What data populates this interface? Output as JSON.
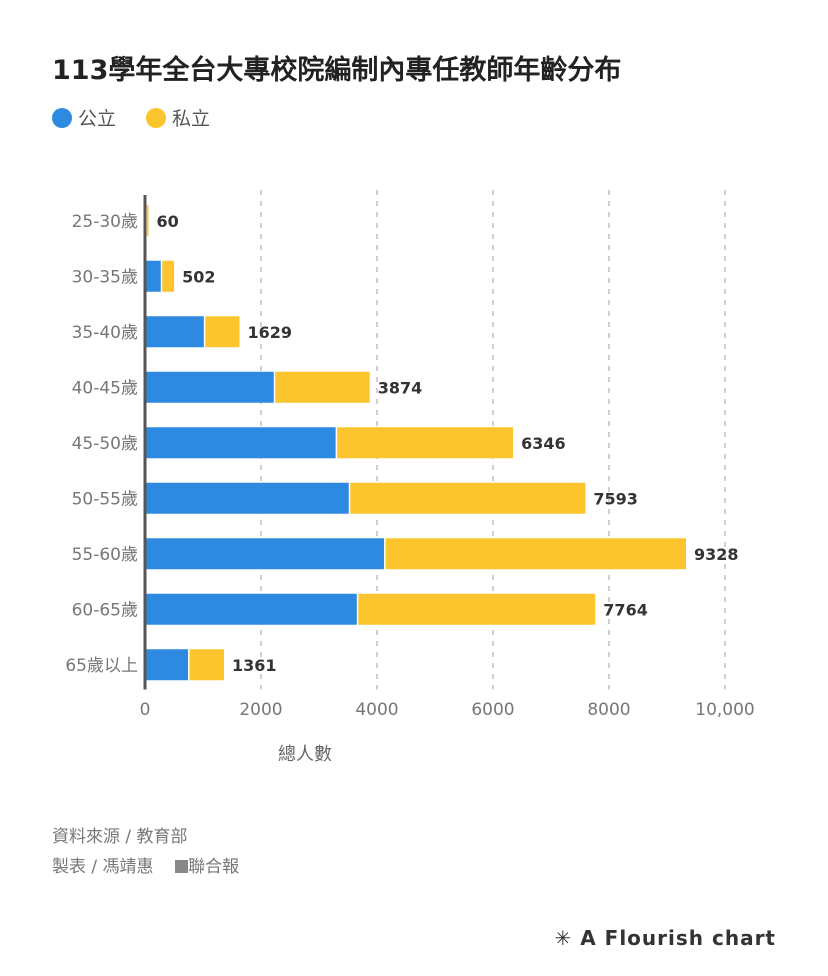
{
  "title": "113學年全台大專校院編制內專任教師年齡分布",
  "chart_data": {
    "type": "bar",
    "orientation": "horizontal",
    "stacked": true,
    "title": "113學年全台大專校院編制內專任教師年齡分布",
    "xlabel": "總人數",
    "ylabel": "",
    "xlim": [
      0,
      10000
    ],
    "xticks": [
      0,
      2000,
      4000,
      6000,
      8000,
      10000
    ],
    "xtick_labels": [
      "0",
      "2000",
      "4000",
      "6000",
      "8000",
      "10,000"
    ],
    "categories": [
      "25-30歲",
      "30-35歲",
      "35-40歲",
      "40-45歲",
      "45-50歲",
      "50-55歲",
      "55-60歲",
      "60-65歲",
      "65歲以上"
    ],
    "series": [
      {
        "name": "公立",
        "color": "#2e8ae0",
        "values": [
          5,
          272,
          1014,
          2220,
          3287,
          3513,
          4122,
          3652,
          742
        ]
      },
      {
        "name": "私立",
        "color": "#fcc52e",
        "values": [
          55,
          230,
          615,
          1654,
          3059,
          4080,
          5206,
          4112,
          619
        ]
      }
    ],
    "totals": [
      60,
      502,
      1629,
      3874,
      6346,
      7593,
      9328,
      7764,
      1361
    ],
    "grid": true,
    "legend_position": "top-left"
  },
  "footer": {
    "source": "資料來源 / 教育部",
    "maker": "製表 / 馮靖惠",
    "publisher": "聯合報"
  },
  "brand": "A Flourish chart"
}
